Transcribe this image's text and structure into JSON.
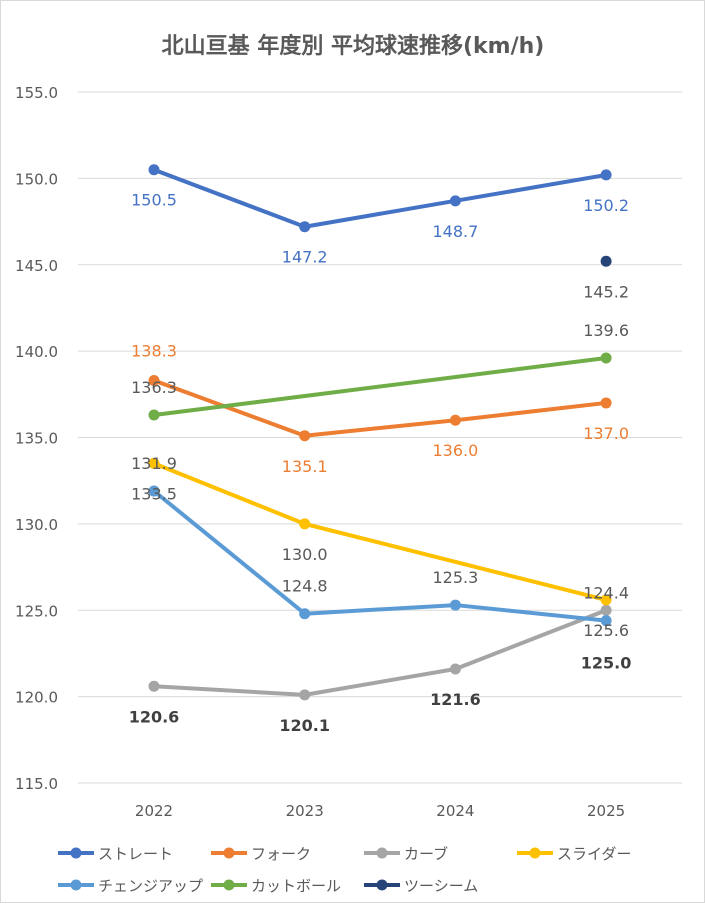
{
  "chart_data": {
    "type": "line",
    "title": "北山亘基 年度別 平均球速推移(km/h)",
    "categories": [
      "2022",
      "2023",
      "2024",
      "2025"
    ],
    "ylim": [
      115,
      155
    ],
    "yticks": [
      "115.0",
      "120.0",
      "125.0",
      "130.0",
      "135.0",
      "140.0",
      "145.0",
      "150.0",
      "155.0"
    ],
    "grid": true,
    "legend_position": "bottom",
    "series": [
      {
        "name": "ストレート",
        "color": "#4472C4",
        "values": [
          150.5,
          147.2,
          148.7,
          150.2
        ],
        "labels": [
          "150.5",
          "147.2",
          "148.7",
          "150.2"
        ]
      },
      {
        "name": "フォーク",
        "color": "#ED7D31",
        "values": [
          138.3,
          135.1,
          136.0,
          137.0
        ],
        "labels": [
          "138.3",
          "135.1",
          "136.0",
          "137.0"
        ]
      },
      {
        "name": "カーブ",
        "color": "#A5A5A5",
        "values": [
          120.6,
          120.1,
          121.6,
          125.0
        ],
        "labels": [
          "120.6",
          "120.1",
          "121.6",
          "125.0"
        ]
      },
      {
        "name": "スライダー",
        "color": "#FFC000",
        "values": [
          133.5,
          130.0,
          null,
          125.6
        ],
        "labels": [
          "133.5",
          "130.0",
          "",
          "125.6"
        ]
      },
      {
        "name": "チェンジアップ",
        "color": "#5B9BD5",
        "values": [
          131.9,
          124.8,
          125.3,
          124.4
        ],
        "labels": [
          "131.9",
          "124.8",
          "125.3",
          "124.4"
        ]
      },
      {
        "name": "カットボール",
        "color": "#70AD47",
        "values": [
          136.3,
          null,
          null,
          139.6
        ],
        "labels": [
          "136.3",
          "",
          "",
          "139.6"
        ]
      },
      {
        "name": "ツーシーム",
        "color": "#264478",
        "values": [
          null,
          null,
          null,
          145.2
        ],
        "labels": [
          "",
          "",
          "",
          "145.2"
        ]
      }
    ]
  }
}
